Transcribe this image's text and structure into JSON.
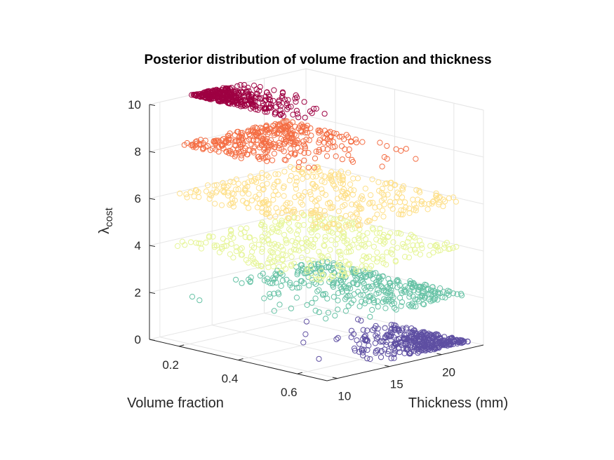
{
  "chart_data": {
    "type": "scatter",
    "title": "Posterior distribution of volume fraction and thickness",
    "xlabel": "Volume fraction",
    "ylabel": "Thickness (mm)",
    "zlabel_base": "λ",
    "zlabel_sub": "cost",
    "xlim": [
      0.1,
      0.7
    ],
    "ylim": [
      9,
      24
    ],
    "zlim": [
      0,
      10
    ],
    "xticks": [
      "0.2",
      "0.4",
      "0.6"
    ],
    "yticks": [
      "10",
      "15",
      "20"
    ],
    "zticks": [
      "0",
      "2",
      "4",
      "6",
      "8",
      "10"
    ],
    "grid": true,
    "marker": "open-circle",
    "series": [
      {
        "z": 0,
        "color": "#5e4fa2",
        "vf_range": [
          0.2,
          0.65
        ],
        "thickness_range": [
          10,
          24
        ],
        "concentration": "high thickness, high volume fraction"
      },
      {
        "z": 2,
        "color": "#66c2a5",
        "vf_range": [
          0.15,
          0.65
        ],
        "thickness_range": [
          9.5,
          24
        ],
        "concentration": "high thickness"
      },
      {
        "z": 4,
        "color": "#e6f598",
        "vf_range": [
          0.12,
          0.65
        ],
        "thickness_range": [
          10,
          24
        ],
        "concentration": "spread"
      },
      {
        "z": 6,
        "color": "#fee08b",
        "vf_range": [
          0.1,
          0.65
        ],
        "thickness_range": [
          11,
          24
        ],
        "concentration": "spread"
      },
      {
        "z": 8,
        "color": "#f46d43",
        "vf_range": [
          0.1,
          0.6
        ],
        "thickness_range": [
          12,
          22
        ],
        "concentration": "low volume fraction"
      },
      {
        "z": 10,
        "color": "#9e0142",
        "vf_range": [
          0.1,
          0.5
        ],
        "thickness_range": [
          13,
          18
        ],
        "concentration": "low volume fraction, low thickness"
      }
    ]
  }
}
